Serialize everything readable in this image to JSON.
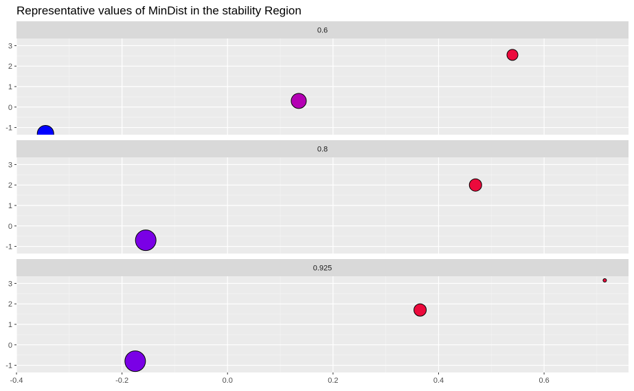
{
  "chart_data": {
    "type": "scatter",
    "title": "Representative values of MinDist in the stability Region",
    "xlabel": "",
    "ylabel": "",
    "xlim": [
      -0.4,
      0.76
    ],
    "ylim": [
      -1.35,
      3.35
    ],
    "x_ticks": [
      -0.4,
      -0.2,
      0.0,
      0.2,
      0.4,
      0.6
    ],
    "x_tick_labels": [
      "-0.4",
      "-0.2",
      "0.0",
      "0.2",
      "0.4",
      "0.6"
    ],
    "y_ticks": [
      -1,
      0,
      1,
      2,
      3
    ],
    "y_tick_labels": [
      "-1",
      "0",
      "1",
      "2",
      "3"
    ],
    "grid": true,
    "facets": [
      {
        "label": "0.6",
        "points": [
          {
            "x": -0.345,
            "y": -1.3,
            "size": 12,
            "color": "#0000ff"
          },
          {
            "x": 0.135,
            "y": 0.3,
            "size": 11,
            "color": "#b400b4"
          },
          {
            "x": 0.54,
            "y": 2.55,
            "size": 8,
            "color": "#ec0a3c"
          }
        ]
      },
      {
        "label": "0.8",
        "points": [
          {
            "x": -0.155,
            "y": -0.7,
            "size": 15,
            "color": "#7a00e6"
          },
          {
            "x": 0.47,
            "y": 2.0,
            "size": 9,
            "color": "#ec0a3c"
          }
        ]
      },
      {
        "label": "0.925",
        "points": [
          {
            "x": -0.175,
            "y": -0.8,
            "size": 15,
            "color": "#7a00e6"
          },
          {
            "x": 0.365,
            "y": 1.7,
            "size": 9,
            "color": "#ec0a3c"
          },
          {
            "x": 0.715,
            "y": 3.15,
            "size": 2.5,
            "color": "#ec0a3c"
          }
        ]
      }
    ]
  }
}
